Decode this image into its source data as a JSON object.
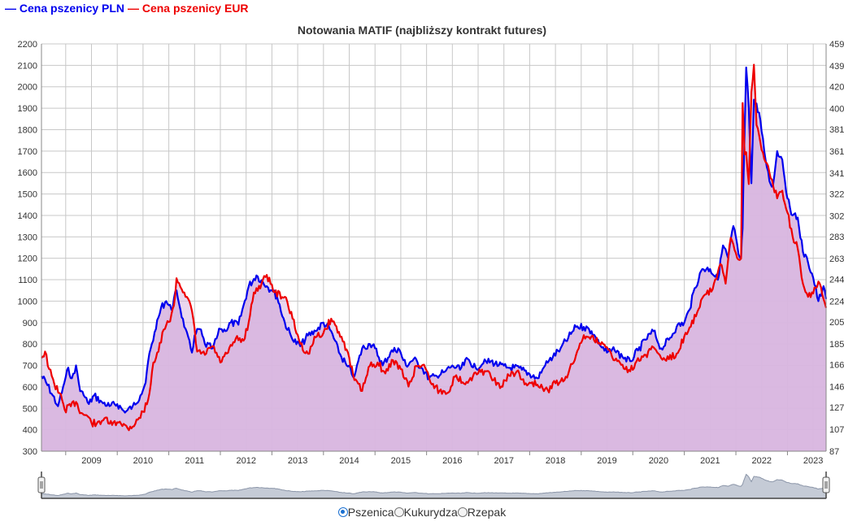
{
  "legend": {
    "pln_label": "— Cena pszenicy PLN",
    "eur_label": "— Cena pszenicy EUR",
    "pln_color": "#0000ee",
    "eur_color": "#ee0000"
  },
  "selector": {
    "options": [
      "Pszenica",
      "Kukurydza",
      "Rzepak"
    ],
    "selected": "Pszenica"
  },
  "chart_data": {
    "type": "line",
    "title": "Notowania MATIF (najbliższy kontrakt futures)",
    "fill_color": "#d8b6e0",
    "grid": true,
    "legend_placement": "top-left",
    "x_range": [
      2008.53,
      2023.75
    ],
    "x_ticks": [
      "2009",
      "2010",
      "2011",
      "2012",
      "2013",
      "2014",
      "2015",
      "2016",
      "2017",
      "2018",
      "2019",
      "2020",
      "2021",
      "2022",
      "2023"
    ],
    "y_left": {
      "range": [
        300,
        2200
      ],
      "ticks": [
        300,
        400,
        500,
        600,
        700,
        800,
        900,
        1000,
        1100,
        1200,
        1300,
        1400,
        1500,
        1600,
        1700,
        1800,
        1900,
        2000,
        2100,
        2200
      ]
    },
    "y_right": {
      "range": [
        87,
        459
      ],
      "ticks": [
        87,
        107,
        127,
        146,
        166,
        185,
        205,
        224,
        244,
        263,
        283,
        302,
        322,
        341,
        361,
        381,
        400,
        420,
        439,
        459
      ]
    },
    "series": [
      {
        "name": "Cena pszenicy PLN",
        "axis": "left",
        "color": "#0000ee",
        "x": [
          2008.53,
          2008.62,
          2008.75,
          2008.85,
          2008.95,
          2009.05,
          2009.12,
          2009.2,
          2009.28,
          2009.35,
          2009.45,
          2009.55,
          2009.7,
          2009.85,
          2010.0,
          2010.15,
          2010.3,
          2010.45,
          2010.55,
          2010.6,
          2010.67,
          2010.75,
          2010.85,
          2010.95,
          2011.05,
          2011.15,
          2011.3,
          2011.45,
          2011.5,
          2011.6,
          2011.7,
          2011.85,
          2012.0,
          2012.1,
          2012.2,
          2012.35,
          2012.45,
          2012.55,
          2012.7,
          2012.9,
          2013.0,
          2013.1,
          2013.25,
          2013.4,
          2013.55,
          2013.7,
          2013.85,
          2014.0,
          2014.15,
          2014.3,
          2014.45,
          2014.6,
          2014.75,
          2014.9,
          2015.0,
          2015.15,
          2015.3,
          2015.45,
          2015.6,
          2015.75,
          2015.9,
          2016.05,
          2016.2,
          2016.35,
          2016.5,
          2016.65,
          2016.8,
          2016.95,
          2017.1,
          2017.25,
          2017.4,
          2017.55,
          2017.7,
          2017.85,
          2018.0,
          2018.15,
          2018.3,
          2018.45,
          2018.6,
          2018.75,
          2018.9,
          2019.05,
          2019.2,
          2019.35,
          2019.5,
          2019.65,
          2019.8,
          2019.95,
          2020.1,
          2020.25,
          2020.4,
          2020.55,
          2020.7,
          2020.85,
          2021.0,
          2021.1,
          2021.2,
          2021.35,
          2021.5,
          2021.65,
          2021.75,
          2021.85,
          2021.95,
          2022.0,
          2022.05,
          2022.1,
          2022.13,
          2022.16,
          2022.2,
          2022.25,
          2022.3,
          2022.35,
          2022.45,
          2022.55,
          2022.65,
          2022.72,
          2022.8,
          2022.9,
          2023.0,
          2023.1,
          2023.2,
          2023.3,
          2023.4,
          2023.5,
          2023.6,
          2023.7,
          2023.75
        ],
        "values": [
          650,
          620,
          560,
          510,
          600,
          690,
          640,
          700,
          580,
          560,
          520,
          560,
          530,
          510,
          520,
          480,
          510,
          560,
          620,
          720,
          800,
          870,
          970,
          1000,
          960,
          1050,
          880,
          760,
          840,
          870,
          800,
          780,
          870,
          860,
          900,
          890,
          980,
          1070,
          1120,
          1070,
          1050,
          1020,
          900,
          820,
          790,
          840,
          860,
          900,
          860,
          760,
          700,
          650,
          780,
          800,
          780,
          700,
          760,
          780,
          700,
          730,
          690,
          640,
          650,
          670,
          700,
          680,
          730,
          690,
          710,
          720,
          700,
          690,
          690,
          680,
          660,
          640,
          700,
          740,
          780,
          830,
          880,
          880,
          860,
          800,
          760,
          770,
          740,
          720,
          770,
          820,
          860,
          780,
          820,
          880,
          900,
          960,
          1060,
          1150,
          1150,
          1100,
          1260,
          1200,
          1350,
          1300,
          1220,
          1200,
          1340,
          1700,
          2090,
          1900,
          1550,
          1940,
          1880,
          1700,
          1560,
          1540,
          1700,
          1660,
          1480,
          1400,
          1390,
          1230,
          1180,
          1110,
          1000,
          1070,
          1010
        ]
      },
      {
        "name": "Cena pszenicy EUR",
        "axis": "right",
        "color": "#ee0000",
        "x": [
          2008.53,
          2008.6,
          2008.68,
          2008.78,
          2008.88,
          2008.98,
          2009.1,
          2009.2,
          2009.3,
          2009.4,
          2009.5,
          2009.6,
          2009.75,
          2009.9,
          2010.05,
          2010.2,
          2010.35,
          2010.5,
          2010.6,
          2010.7,
          2010.8,
          2010.9,
          2011.0,
          2011.1,
          2011.15,
          2011.3,
          2011.45,
          2011.55,
          2011.7,
          2011.85,
          2012.0,
          2012.15,
          2012.3,
          2012.45,
          2012.55,
          2012.65,
          2012.8,
          2012.9,
          2013.05,
          2013.25,
          2013.4,
          2013.55,
          2013.7,
          2013.85,
          2014.0,
          2014.15,
          2014.3,
          2014.45,
          2014.6,
          2014.75,
          2014.9,
          2015.05,
          2015.2,
          2015.35,
          2015.5,
          2015.65,
          2015.8,
          2015.95,
          2016.1,
          2016.25,
          2016.4,
          2016.55,
          2016.7,
          2016.85,
          2017.0,
          2017.15,
          2017.3,
          2017.45,
          2017.6,
          2017.75,
          2017.9,
          2018.05,
          2018.2,
          2018.35,
          2018.5,
          2018.6,
          2018.75,
          2018.9,
          2019.05,
          2019.2,
          2019.35,
          2019.5,
          2019.65,
          2019.8,
          2019.95,
          2020.1,
          2020.25,
          2020.4,
          2020.55,
          2020.7,
          2020.85,
          2021.0,
          2021.1,
          2021.25,
          2021.4,
          2021.55,
          2021.7,
          2021.8,
          2021.9,
          2022.0,
          2022.05,
          2022.1,
          2022.13,
          2022.17,
          2022.2,
          2022.25,
          2022.3,
          2022.35,
          2022.4,
          2022.5,
          2022.6,
          2022.7,
          2022.8,
          2022.9,
          2023.0,
          2023.1,
          2023.2,
          2023.3,
          2023.4,
          2023.5,
          2023.6,
          2023.7,
          2023.75
        ],
        "values": [
          172,
          178,
          162,
          148,
          140,
          125,
          128,
          132,
          122,
          120,
          113,
          112,
          117,
          111,
          114,
          108,
          112,
          123,
          134,
          168,
          178,
          198,
          205,
          220,
          245,
          232,
          215,
          178,
          175,
          183,
          168,
          177,
          190,
          188,
          205,
          232,
          240,
          248,
          232,
          228,
          208,
          185,
          176,
          191,
          195,
          208,
          196,
          180,
          152,
          142,
          165,
          168,
          158,
          170,
          162,
          146,
          165,
          166,
          148,
          142,
          140,
          155,
          150,
          154,
          158,
          160,
          152,
          146,
          156,
          160,
          148,
          150,
          145,
          143,
          149,
          151,
          158,
          175,
          193,
          192,
          186,
          182,
          170,
          166,
          160,
          172,
          175,
          182,
          172,
          171,
          176,
          192,
          200,
          214,
          230,
          235,
          258,
          240,
          282,
          268,
          262,
          263,
          405,
          358,
          360,
          331,
          415,
          440,
          385,
          362,
          350,
          335,
          318,
          325,
          305,
          283,
          272,
          240,
          228,
          231,
          242,
          226,
          218
        ]
      }
    ]
  },
  "navigator": {
    "fill_color": "#c5cbd6",
    "line_color": "#8b95a8"
  }
}
